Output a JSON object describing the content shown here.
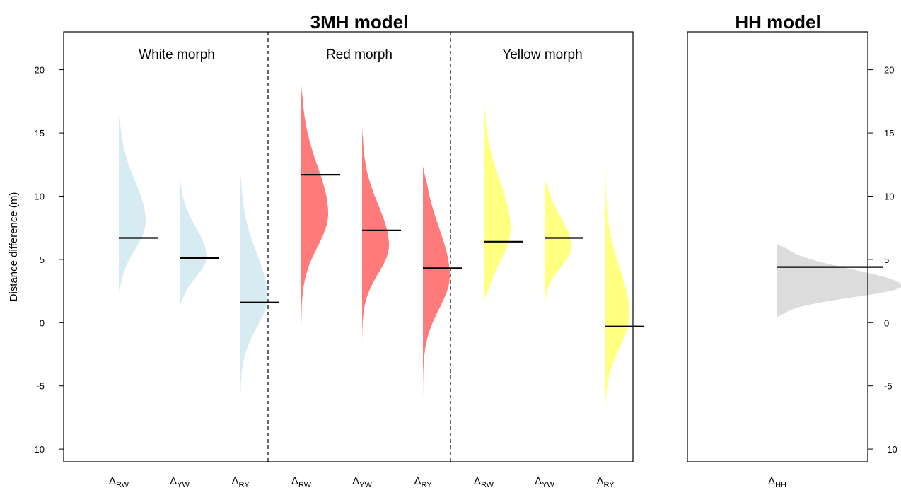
{
  "chart_data": {
    "type": "violin",
    "ylabel": "Distance difference (m)",
    "ylim": [
      -11,
      23
    ],
    "yticks": [
      -10,
      -5,
      0,
      5,
      10,
      15,
      20
    ],
    "panels": [
      {
        "title": "3MH model",
        "groups": [
          {
            "label": "White morph",
            "color": "#d6ebf2",
            "series": [
              {
                "category": "Δ_RW",
                "symbol": "Δ",
                "subscript": "RW",
                "min": 2.5,
                "max": 16.3,
                "mode": 8.0,
                "spread": 2.2,
                "peak": 1.0,
                "median": 6.7
              },
              {
                "category": "Δ_YW",
                "symbol": "Δ",
                "subscript": "YW",
                "min": 1.3,
                "max": 12.4,
                "mode": 5.2,
                "spread": 1.6,
                "peak": 1.0,
                "median": 5.1
              },
              {
                "category": "Δ_RY",
                "symbol": "Δ",
                "subscript": "RY",
                "min": -6.2,
                "max": 11.8,
                "mode": 2.0,
                "spread": 2.4,
                "peak": 1.0,
                "median": 1.6
              }
            ]
          },
          {
            "label": "Red morph",
            "color": "#ff7b7b",
            "series": [
              {
                "category": "Δ_RW",
                "symbol": "Δ",
                "subscript": "RW",
                "min": -0.5,
                "max": 18.7,
                "mode": 8.6,
                "spread": 2.6,
                "peak": 1.0,
                "median": 11.7
              },
              {
                "category": "Δ_YW",
                "symbol": "Δ",
                "subscript": "YW",
                "min": -1.8,
                "max": 15.4,
                "mode": 6.1,
                "spread": 2.2,
                "peak": 1.0,
                "median": 7.3
              },
              {
                "category": "Δ_RY",
                "symbol": "Δ",
                "subscript": "RY",
                "min": -8.6,
                "max": 12.3,
                "mode": 3.7,
                "spread": 2.6,
                "peak": 1.0,
                "median": 4.3
              }
            ]
          },
          {
            "label": "Yellow morph",
            "color": "#ffff80",
            "series": [
              {
                "category": "Δ_RW",
                "symbol": "Δ",
                "subscript": "RW",
                "min": 1.6,
                "max": 20.6,
                "mode": 7.4,
                "spread": 2.6,
                "peak": 1.0,
                "median": 6.4
              },
              {
                "category": "Δ_YW",
                "symbol": "Δ",
                "subscript": "YW",
                "min": -0.9,
                "max": 11.4,
                "mode": 6.0,
                "spread": 1.6,
                "peak": 1.0,
                "median": 6.7
              },
              {
                "category": "Δ_RY",
                "symbol": "Δ",
                "subscript": "RY",
                "min": -6.8,
                "max": 16.8,
                "mode": 0.6,
                "spread": 2.5,
                "peak": 0.9,
                "median": -0.3
              }
            ]
          }
        ]
      },
      {
        "title": "HH model",
        "groups": [
          {
            "label": "",
            "color": "#dcdcdc",
            "series": [
              {
                "category": "Δ_HH",
                "symbol": "Δ",
                "subscript": "HH",
                "min": 0.4,
                "max": 6.2,
                "mode": 2.9,
                "spread": 0.9,
                "peak": 1.0,
                "median": 4.4
              }
            ]
          }
        ]
      }
    ]
  }
}
